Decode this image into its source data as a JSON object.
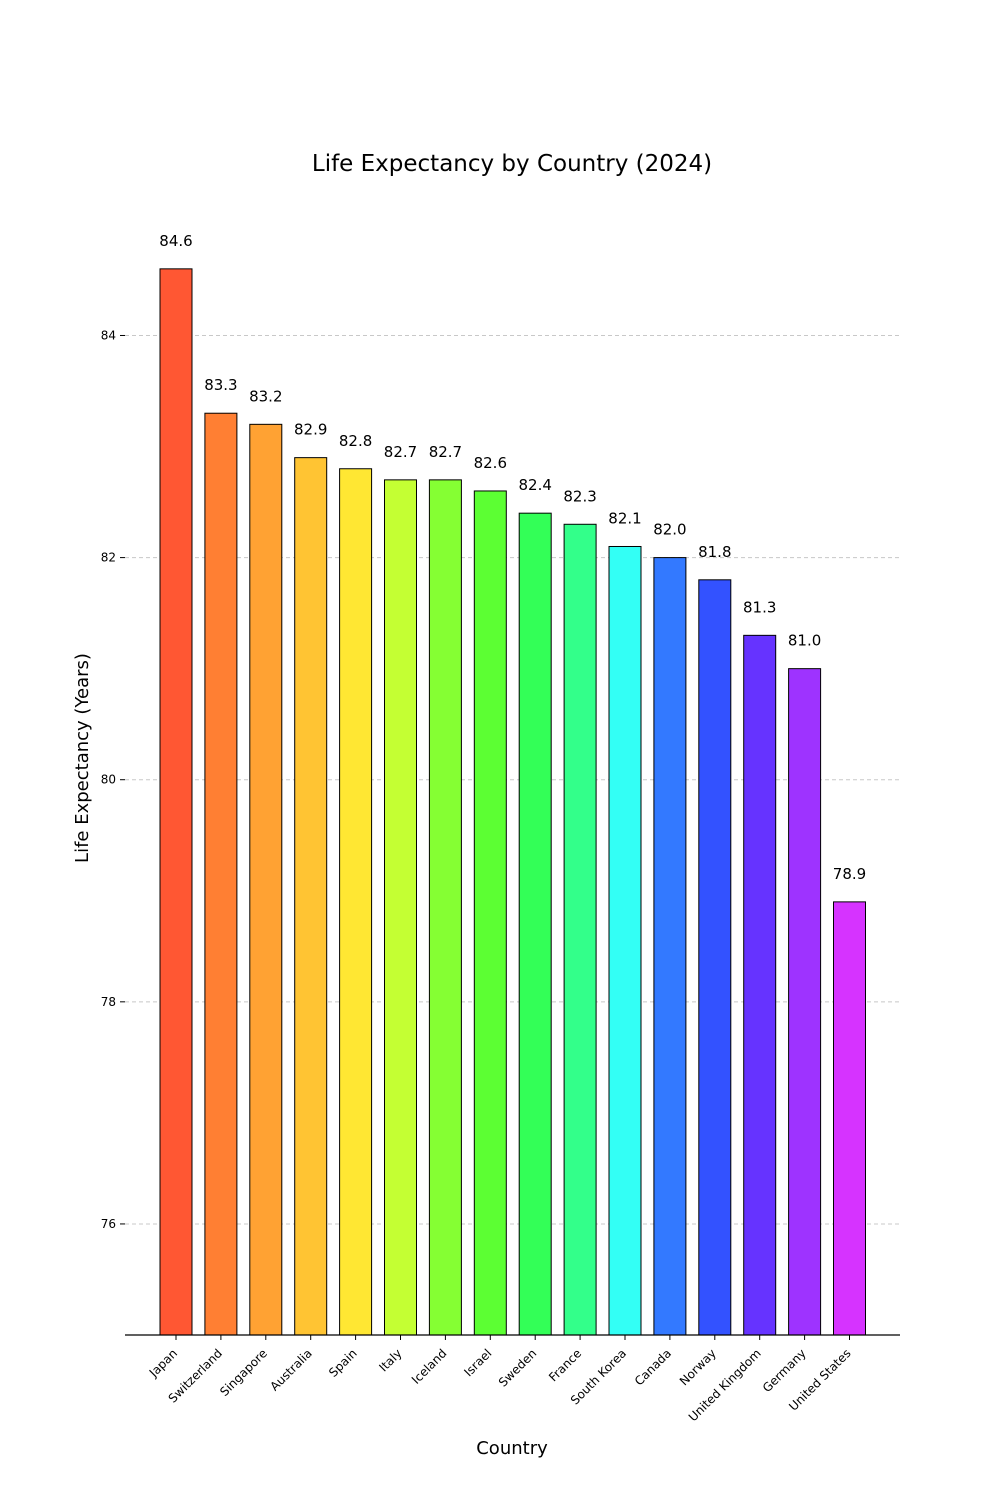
{
  "chart_data": {
    "type": "bar",
    "title": "Life Expectancy by Country (2024)",
    "xlabel": "Country",
    "ylabel": "Life Expectancy (Years)",
    "ylim": [
      75,
      85.4
    ],
    "yticks": [
      76,
      78,
      80,
      82,
      84
    ],
    "grid": true,
    "categories": [
      "Japan",
      "Switzerland",
      "Singapore",
      "Australia",
      "Spain",
      "Italy",
      "Iceland",
      "Israel",
      "Sweden",
      "France",
      "South Korea",
      "Canada",
      "Norway",
      "United Kingdom",
      "Germany",
      "United States"
    ],
    "values": [
      84.6,
      83.3,
      83.2,
      82.9,
      82.8,
      82.7,
      82.7,
      82.6,
      82.4,
      82.3,
      82.1,
      82.0,
      81.8,
      81.3,
      81.0,
      78.9
    ],
    "colors": [
      "#ff5733",
      "#ff7f33",
      "#ffa233",
      "#ffc433",
      "#ffe733",
      "#c4ff33",
      "#85ff33",
      "#5cff33",
      "#33ff57",
      "#33ff8a",
      "#33fff5",
      "#3379ff",
      "#3352ff",
      "#6633ff",
      "#9e33ff",
      "#d633ff"
    ]
  }
}
